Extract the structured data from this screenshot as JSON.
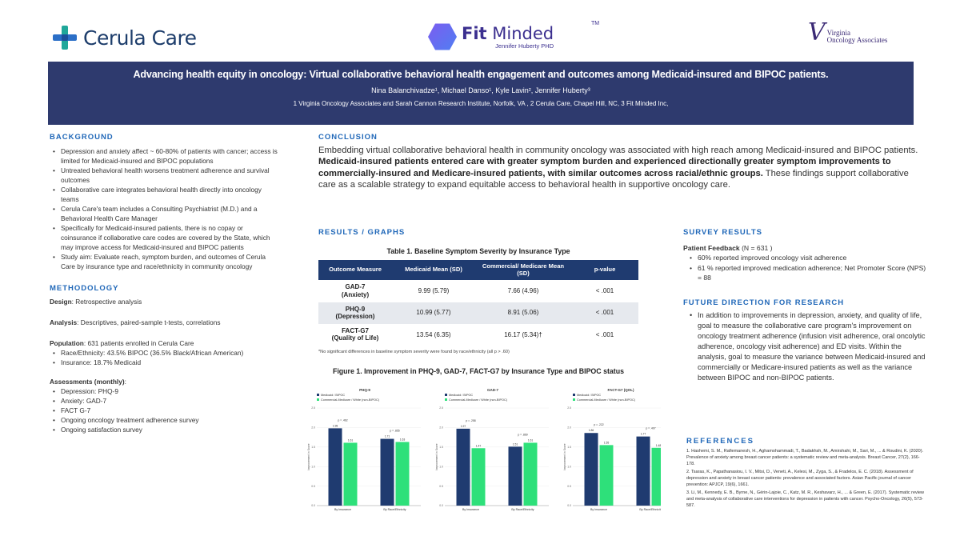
{
  "logos": {
    "cerula": "Cerula Care",
    "fit_main_bold": "Fit",
    "fit_main": " Minded",
    "fit_tm": "TM",
    "fit_sub": "Jennifer Huberty PHD",
    "voa_line1": "Virginia",
    "voa_line2": "Oncology Associates",
    "colors": {
      "cerula_teal": "#1fa79a",
      "cerula_blue": "#2b6fc7",
      "fit_purple": "#6b5cf0",
      "voa_purple": "#3b2a75"
    }
  },
  "banner": {
    "title": "Advancing health equity in oncology: Virtual collaborative behavioral health engagement and outcomes among Medicaid-insured and BIPOC patients.",
    "authors": "Nina Balanchivadze¹, Michael Danso¹, Kyle Lavin², Jennifer Huberty³",
    "affiliations": "1  Virginia Oncology Associates and Sarah Cannon Research Institute, Norfolk, VA , 2 Cerula Care, Chapel Hill, NC, 3 Fit Minded Inc,",
    "bg_color": "#2e3a6e"
  },
  "background": {
    "heading": "BACKGROUND",
    "items": [
      "Depression and anxiety affect ~ 60-80% of patients with cancer; access is limited for Medicaid-insured and BIPOC populations",
      "Untreated behavioral health worsens treatment adherence and survival outcomes",
      "Collaborative care integrates behavioral health directly into oncology teams",
      "Cerula Care's team includes a Consulting Psychiatrist (M.D.) and a Behavioral Health Care Manager",
      "Specifically for Medicaid-insured patients, there is no copay or coinsurance if collaborative care codes are covered by the State, which may improve access for Medicaid-insured and BIPOC patients",
      "Study aim: Evaluate reach, symptom burden, and outcomes of Cerula Care by insurance type and race/ethnicity in community oncology"
    ]
  },
  "methodology": {
    "heading": "METHODOLOGY",
    "design_label": "Design",
    "design_value": ": Retrospective analysis",
    "analysis_label": "Analysis",
    "analysis_value": ": Descriptives, paired-sample t-tests, correlations",
    "population_label": "Population",
    "population_value": ":  631  patients enrolled in Cerula Care",
    "population_items": [
      "Race/Ethnicity: 43.5% BIPOC (36.5% Black/African American)",
      "Insurance: 18.7% Medicaid"
    ],
    "assessments_label": "Assessments (monthly)",
    "assessments_colon": ":",
    "assessment_items": [
      "Depression: PHQ-9",
      "Anxiety: GAD-7",
      "FACT G-7",
      "Ongoing oncology treatment adherence survey",
      "Ongoing satisfaction survey"
    ]
  },
  "conclusion": {
    "heading": "CONCLUSION",
    "text_a": "Embedding virtual collaborative behavioral health in community oncology was associated with high reach among Medicaid-insured and BIPOC patients.  ",
    "text_bold": "Medicaid-insured patients entered care with greater symptom burden and experienced directionally greater symptom improvements to commercially-insured and Medicare-insured patients, with similar outcomes across racial/ethnic groups.",
    "text_b": "  These findings support collaborative care as a scalable strategy to expand equitable access to behavioral health in supportive oncology care."
  },
  "results": {
    "heading": "RESULTS / GRAPHS",
    "table_title": "Table 1. Baseline Symptom Severity by Insurance Type",
    "columns": [
      "Outcome Measure",
      "Medicaid Mean (SD)",
      "Commercial/ Medicare Mean (SD)",
      "p-value"
    ],
    "rows": [
      {
        "measure": "GAD-7",
        "sub": "(Anxiety)",
        "medicaid": "9.99 (5.79)",
        "commercial": "7.66 (4.96)",
        "p": "< .001"
      },
      {
        "measure": "PHQ-9",
        "sub": "(Depression)",
        "medicaid": "10.99 (5.77)",
        "commercial": "8.91 (5.06)",
        "p": "< .001"
      },
      {
        "measure": "FACT-G7",
        "sub": "(Quality of Life)",
        "medicaid": "13.54 (6.35)",
        "commercial": "16.17 (5.34)†",
        "p": "< .001"
      }
    ],
    "table_note": "*No significant differences in baseline symptom severity were found by race/ethnicity (all p > .60)",
    "figure_title": "Figure 1. Improvement in PHQ-9, GAD-7, FACT-G7 by Insurance Type and BIPOC status"
  },
  "chart_data": [
    {
      "type": "bar",
      "title": "PHQ-9",
      "categories": [
        "By Insurance",
        "By Race/Ethnicity"
      ],
      "series": [
        {
          "name": "Medicaid / BIPOC",
          "values": [
            1.98,
            1.71
          ],
          "color": "#1f3b70"
        },
        {
          "name": "Commercial-Medicare / White (non-BIPOC)",
          "values": [
            1.61,
            1.63
          ],
          "color": "#2ee07a"
        }
      ],
      "p_labels": [
        "p = .462",
        "p = .855"
      ],
      "ylabel": "Improvement in Score",
      "ylim": [
        0,
        2.5
      ]
    },
    {
      "type": "bar",
      "title": "GAD-7",
      "categories": [
        "By Insurance",
        "By Race/Ethnicity"
      ],
      "series": [
        {
          "name": "Medicaid / BIPOC",
          "values": [
            1.97,
            1.51
          ],
          "color": "#1f3b70"
        },
        {
          "name": "Commercial-Medicare / White (non-BIPOC)",
          "values": [
            1.47,
            1.61
          ],
          "color": "#2ee07a"
        }
      ],
      "p_labels": [
        "p = .258",
        "p = .869"
      ],
      "ylabel": "Improvement in Score",
      "ylim": [
        0,
        2.5
      ]
    },
    {
      "type": "bar",
      "title": "FACT-G7 (QOL)",
      "categories": [
        "By Insurance",
        "By Race/Ethnicity"
      ],
      "series": [
        {
          "name": "Medicaid / BIPOC",
          "values": [
            1.86,
            1.77
          ],
          "color": "#1f3b70"
        },
        {
          "name": "Commercial-Medicare / White (non-BIPOC)",
          "values": [
            1.55,
            1.48
          ],
          "color": "#2ee07a"
        }
      ],
      "p_labels": [
        "p = .222",
        "p = .407"
      ],
      "ylabel": "Improvement in Score",
      "ylim": [
        0,
        2.5
      ]
    }
  ],
  "survey": {
    "heading": "SURVEY RESULTS",
    "feedback_label": "Patient Feedback",
    "feedback_n": " (N = 631 )",
    "items": [
      "60% reported improved oncology visit adherence",
      "61 % reported improved medication adherence; Net Promoter Score (NPS) = 88"
    ]
  },
  "future": {
    "heading": "FUTURE DIRECTION FOR RESEARCH",
    "text": "In addition to improvements in depression, anxiety, and quality of life, goal to measure the collaborative care program's improvement on oncology treatment adherence (infusion visit adherence, oral oncolytic adherence, oncology visit adherence) and ED visits.  Within the analysis, goal to measure the variance between Medicaid-insured and commercially or Medicare-insured patients as well as the variance between BIPOC and non-BIPOC patients."
  },
  "references": {
    "heading": "REFERENCES",
    "items": [
      "1. Hashemi, S. M., Rafiemanesh, H., Aghamohammadi, T., Badakhsh, M., Amirshahi, M., Sari, M., ... & Roudini, K. (2020). Prevalence of anxiety among breast cancer patients: a systematic review and meta-analysis. Breast Cancer, 27(2), 166-178.",
      "2. Tsaras, K., Papathanasiou, I. V., Mitsi, D., Veneti, A., Kelesi, M., Zyga, S., & Fradelos, E. C. (2018). Assessment of depression and anxiety in breast cancer patients: prevalence and associated factors. Asian Pacific journal of cancer prevention: APJCP, 19(6), 1661.",
      "3. Li, M., Kennedy, E. B., Byrne, N., Gérin-Lajoie, C., Katz, M. R., Keshavarz, H., ... & Green, E. (2017). Systematic review and meta-analysis of collaborative care interventions for depression in patients with cancer. Psycho-Oncology, 26(5), 573-587."
    ]
  }
}
